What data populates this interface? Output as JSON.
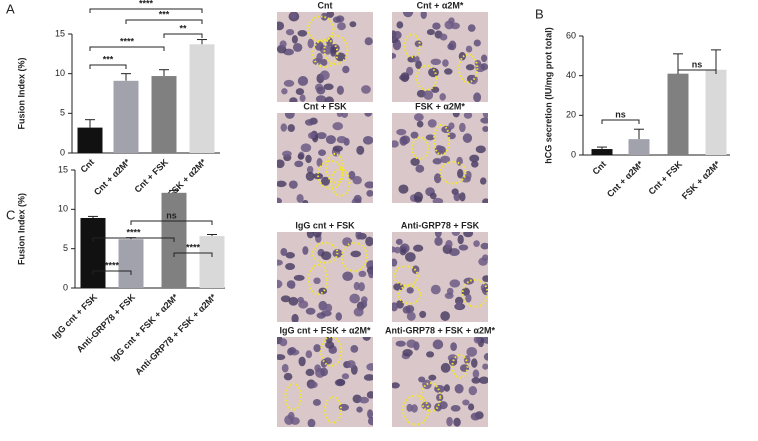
{
  "panel_labels": [
    "A",
    "B",
    "C"
  ],
  "micrographs": [
    {
      "caption": "Cnt"
    },
    {
      "caption": "Cnt + α2M*"
    },
    {
      "caption": "Cnt + FSK"
    },
    {
      "caption": "FSK + α2M*"
    },
    {
      "caption": "IgG cnt + FSK"
    },
    {
      "caption": "Anti-GRP78 + FSK"
    },
    {
      "caption": "IgG cnt + FSK + α2M*"
    },
    {
      "caption": "Anti-GRP78 + FSK + α2M*"
    }
  ],
  "chart_data": [
    {
      "type": "bar",
      "ylabel": "Fusion Index (%)",
      "categories": [
        "Cnt",
        "Cnt + α2M*",
        "Cnt + FSK",
        "FSK + α2M*"
      ],
      "values": [
        3.2,
        9.1,
        9.7,
        13.7
      ],
      "errors": [
        1.0,
        0.9,
        0.8,
        0.6
      ],
      "colors": [
        "#111111",
        "#a2a2ad",
        "#808080",
        "#d9d9d9"
      ],
      "ylim": [
        0,
        15
      ],
      "yticks": [
        0,
        5,
        10,
        15
      ],
      "annotations": [
        {
          "text": "****",
          "from": "Cnt",
          "to": "FSK + α2M*"
        },
        {
          "text": "***",
          "from": "Cnt + α2M*",
          "to": "FSK + α2M*"
        },
        {
          "text": "**",
          "from": "Cnt + FSK",
          "to": "FSK + α2M*"
        },
        {
          "text": "****",
          "from": "Cnt",
          "to": "Cnt + FSK"
        },
        {
          "text": "***",
          "from": "Cnt",
          "to": "Cnt + α2M*"
        }
      ]
    },
    {
      "type": "bar",
      "ylabel": "hCG secretion (IU/mg prot total)",
      "categories": [
        "Cnt",
        "Cnt + α2M*",
        "Cnt + FSK",
        "FSK + α2M*"
      ],
      "values": [
        3,
        8,
        41,
        43
      ],
      "errors": [
        1,
        5,
        10,
        10
      ],
      "colors": [
        "#111111",
        "#a2a2ad",
        "#808080",
        "#d9d9d9"
      ],
      "ylim": [
        0,
        60
      ],
      "yticks": [
        0,
        20,
        40,
        60
      ],
      "annotations": [
        {
          "text": "ns",
          "from": "Cnt + FSK",
          "to": "FSK + α2M*"
        },
        {
          "text": "ns",
          "from": "Cnt",
          "to": "Cnt + α2M*"
        }
      ]
    },
    {
      "type": "bar",
      "ylabel": "Fusion Index (%)",
      "categories": [
        "IgG cnt + FSK",
        "Anti-GRP78 + FSK",
        "IgG cnt + FSK + α2M*",
        "Anti-GRP78 + FSK + α2M*"
      ],
      "values": [
        8.9,
        6.2,
        12.1,
        6.6
      ],
      "errors": [
        0.2,
        0.2,
        0.3,
        0.2
      ],
      "colors": [
        "#111111",
        "#a2a2ad",
        "#808080",
        "#d9d9d9"
      ],
      "ylim": [
        0,
        15
      ],
      "yticks": [
        0,
        5,
        10,
        15
      ],
      "annotations": [
        {
          "text": "ns",
          "from": "Anti-GRP78 + FSK",
          "to": "Anti-GRP78 + FSK + α2M*"
        },
        {
          "text": "****",
          "from": "IgG cnt + FSK",
          "to": "IgG cnt + FSK + α2M*"
        },
        {
          "text": "****",
          "from": "IgG cnt + FSK + α2M*",
          "to": "Anti-GRP78 + FSK + α2M*"
        },
        {
          "text": "****",
          "from": "IgG cnt + FSK",
          "to": "Anti-GRP78 + FSK"
        }
      ]
    }
  ]
}
